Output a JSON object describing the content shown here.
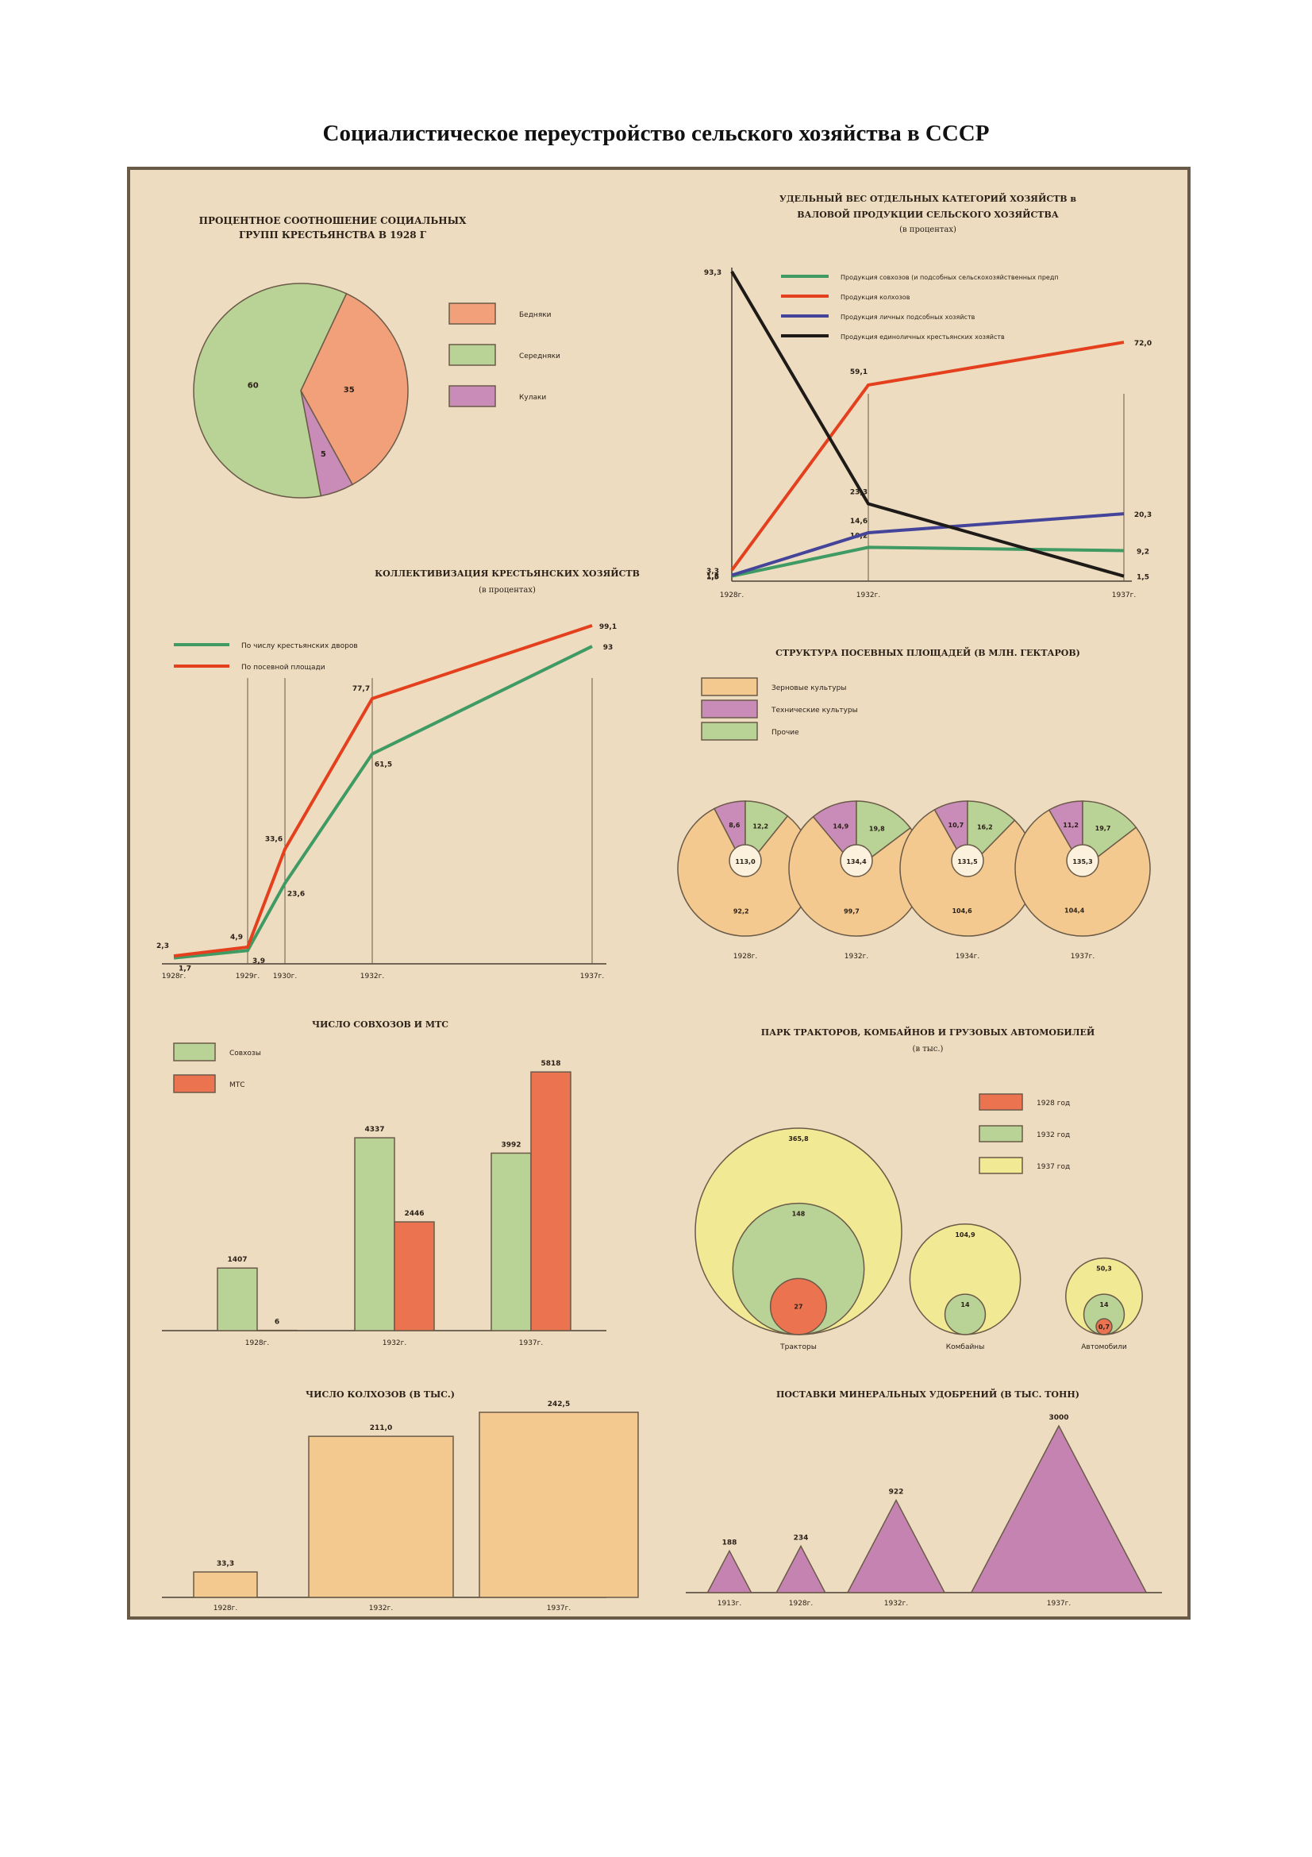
{
  "page": {
    "title": "Социалистическое переустройство сельского хозяйства в СССР"
  },
  "colors": {
    "paper": "#eddcc0",
    "orange": "#f2a07a",
    "green": "#b9d295",
    "pink": "#c98bb7",
    "grain": "#f4c98f",
    "red": "#ec7350",
    "yellow": "#f1e994",
    "line_green": "#3f9a63",
    "line_red": "#e4401e",
    "line_blue": "#44449a",
    "line_black": "#1d1a17",
    "triangle": "#c583b2"
  },
  "chart_data": [
    {
      "id": "peasant-groups",
      "type": "pie",
      "title": "Процентное соотношение социальных групп крестьянства в 1928 г",
      "legend": [
        "Бедняки",
        "Середняки",
        "Кулаки"
      ],
      "slices": [
        {
          "label": "Бедняки",
          "value": 35,
          "color": "#f2a07a"
        },
        {
          "label": "Середняки",
          "value": 60,
          "color": "#b9d295"
        },
        {
          "label": "Кулаки",
          "value": 5,
          "color": "#c98bb7"
        }
      ]
    },
    {
      "id": "output-share",
      "type": "line",
      "title": "Удельный вес отдельных категорий хозяйств в валовой продукции сельского хозяйства",
      "subtitle": "(в процентах)",
      "x": [
        "1928г.",
        "1932г.",
        "1937г."
      ],
      "series": [
        {
          "name": "Продукция совхозов (и подсобных сельскохозяйственных предприятий)",
          "color": "#3f9a63",
          "values": [
            1.5,
            10.2,
            9.2
          ],
          "labels": [
            "1,5",
            "10,2",
            "9,2"
          ]
        },
        {
          "name": "Продукция колхозов",
          "color": "#e4401e",
          "values": [
            3.3,
            59.1,
            72.0
          ],
          "labels": [
            "3,3",
            "59,1",
            "72,0"
          ]
        },
        {
          "name": "Продукция личных подсобных хозяйств",
          "color": "#44449a",
          "values": [
            1.8,
            14.6,
            20.3
          ],
          "labels": [
            "1,8",
            "14,6",
            "20,3"
          ]
        },
        {
          "name": "Продукция единоличных крестьянских хозяйств",
          "color": "#1d1a17",
          "values": [
            93.3,
            23.3,
            1.5
          ],
          "labels": [
            "93,3",
            "23,3",
            "1,5"
          ]
        }
      ],
      "ylim": [
        0,
        100
      ]
    },
    {
      "id": "collectivization",
      "type": "line",
      "title": "Коллективизация крестьянских хозяйств",
      "subtitle": "(в процентах)",
      "x": [
        "1928г.",
        "1929г.",
        "1930г.",
        "1932г.",
        "1937г."
      ],
      "x_values": [
        1928,
        1929,
        1930,
        1932,
        1937
      ],
      "series": [
        {
          "name": "По числу крестьянских дворов",
          "color": "#3f9a63",
          "values": [
            1.7,
            3.9,
            23.6,
            61.5,
            93.0
          ],
          "labels": [
            "1,7",
            "3,9",
            "23,6",
            "61,5",
            "93"
          ]
        },
        {
          "name": "По посевной площади",
          "color": "#e4401e",
          "values": [
            2.3,
            4.9,
            33.6,
            77.7,
            99.1
          ],
          "labels": [
            "2,3",
            "4,9",
            "33,6",
            "77,7",
            "99,1"
          ]
        }
      ],
      "ylim": [
        0,
        100
      ]
    },
    {
      "id": "sown-area",
      "type": "pie",
      "title": "Структура посевных площадей (в млн. гектаров)",
      "legend": [
        "Зерновые культуры",
        "Технические культуры",
        "Прочие"
      ],
      "years": [
        "1928г.",
        "1932г.",
        "1934г.",
        "1937г."
      ],
      "totals": [
        "113,0",
        "134,4",
        "131,5",
        "135,3"
      ],
      "grain": [
        92.2,
        99.7,
        104.6,
        104.4
      ],
      "grain_labels": [
        "92,2",
        "99,7",
        "104,6",
        "104,4"
      ],
      "technical": [
        8.6,
        14.9,
        10.7,
        11.2
      ],
      "technical_labels": [
        "8,6",
        "14,9",
        "10,7",
        "11,2"
      ],
      "other": [
        12.2,
        19.8,
        16.2,
        19.7
      ],
      "other_labels": [
        "12,2",
        "19,8",
        "16,2",
        "19,7"
      ]
    },
    {
      "id": "sovkhoz-mts",
      "type": "bar",
      "title": "Число совхозов и МТС",
      "legend": [
        "Совхозы",
        "МТС"
      ],
      "categories": [
        "1928г.",
        "1932г.",
        "1937г."
      ],
      "series": [
        {
          "name": "Совхозы",
          "color": "#b9d295",
          "values": [
            1407,
            4337,
            3992
          ]
        },
        {
          "name": "МТС",
          "color": "#ec7350",
          "values": [
            6,
            2446,
            5818
          ]
        }
      ],
      "ylim": [
        0,
        6000
      ]
    },
    {
      "id": "machine-park",
      "type": "bubble",
      "title": "Парк тракторов, комбайнов и грузовых автомобилей",
      "subtitle": "(в тыс.)",
      "legend": [
        "1928 год",
        "1932 год",
        "1937 год"
      ],
      "groups": [
        {
          "name": "Тракторы",
          "values": [
            27,
            148,
            365.8
          ],
          "labels": [
            "27",
            "148",
            "365,8"
          ]
        },
        {
          "name": "Комбайны",
          "values": [
            0,
            14,
            104.9
          ],
          "labels": [
            "",
            "14",
            "104,9"
          ]
        },
        {
          "name": "Автомобили",
          "values": [
            0.7,
            14,
            50.3
          ],
          "labels": [
            "0,7",
            "14",
            "50,3"
          ]
        }
      ]
    },
    {
      "id": "kolkhoz-count",
      "type": "bar",
      "title": "Число колхозов (в тыс.)",
      "categories": [
        "1928г.",
        "1932г.",
        "1937г."
      ],
      "values": [
        33.3,
        211.0,
        242.5
      ],
      "labels": [
        "33,3",
        "211,0",
        "242,5"
      ]
    },
    {
      "id": "fertilizer",
      "type": "bar",
      "title": "Поставки минеральных удобрений (в тыс. тонн)",
      "categories": [
        "1913г.",
        "1928г.",
        "1932г.",
        "1937г."
      ],
      "values": [
        188,
        234,
        922,
        3000
      ],
      "labels": [
        "188",
        "234",
        "922",
        "3000"
      ]
    }
  ]
}
